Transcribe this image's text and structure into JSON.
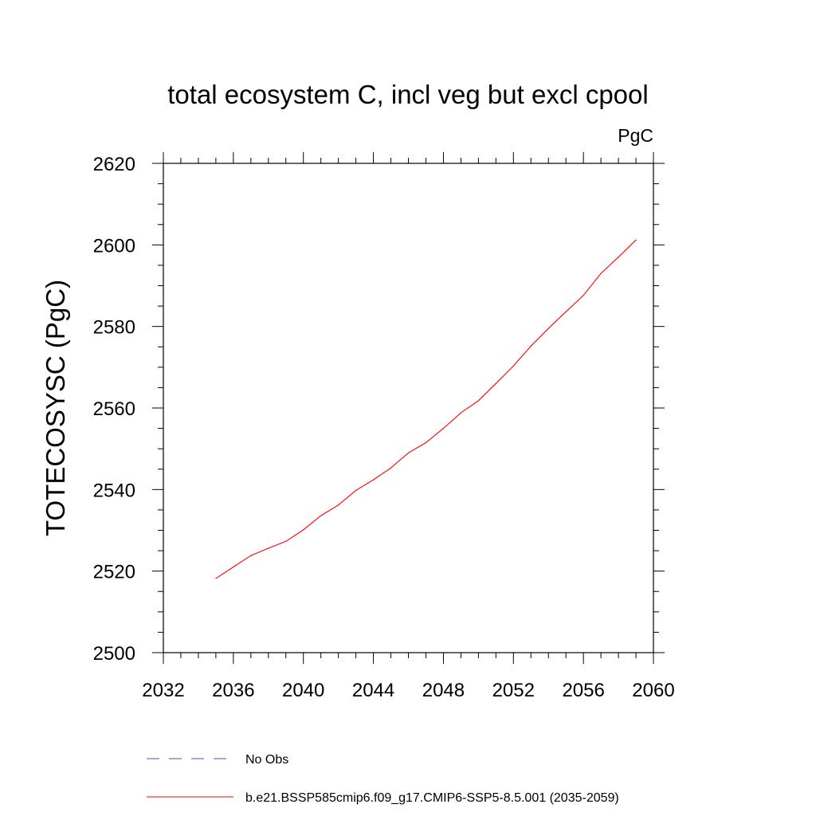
{
  "chart_data": {
    "type": "line",
    "title": "total ecosystem C, incl veg but excl cpool",
    "units": "PgC",
    "ylabel": "TOTECOSYSC  (PgC)",
    "xlabel": "",
    "xlim": [
      2032,
      2060
    ],
    "ylim": [
      2500,
      2620
    ],
    "xticks": [
      2032,
      2036,
      2040,
      2044,
      2048,
      2052,
      2056,
      2060
    ],
    "yticks": [
      2500,
      2520,
      2540,
      2560,
      2580,
      2600,
      2620
    ],
    "grid": false,
    "legend_position": "bottom",
    "series": [
      {
        "name": "No Obs",
        "style": "dashed",
        "color": "#4a4ad0",
        "x": [],
        "y": []
      },
      {
        "name": "b.e21.BSSP585cmip6.f09_g17.CMIP6-SSP5-8.5.001 (2035-2059)",
        "style": "solid",
        "color": "#ff0000",
        "x": [
          2035,
          2036,
          2037,
          2038,
          2039,
          2040,
          2041,
          2042,
          2043,
          2044,
          2045,
          2046,
          2047,
          2048,
          2049,
          2050,
          2051,
          2052,
          2053,
          2054,
          2055,
          2056,
          2057,
          2058,
          2059
        ],
        "y": [
          2518.2,
          2521.0,
          2523.8,
          2525.6,
          2527.3,
          2530.1,
          2533.6,
          2536.2,
          2539.8,
          2542.4,
          2545.3,
          2549.0,
          2551.5,
          2555.0,
          2558.8,
          2561.8,
          2566.0,
          2570.3,
          2575.2,
          2579.5,
          2583.6,
          2587.6,
          2593.0,
          2597.0,
          2601.2
        ]
      }
    ]
  }
}
